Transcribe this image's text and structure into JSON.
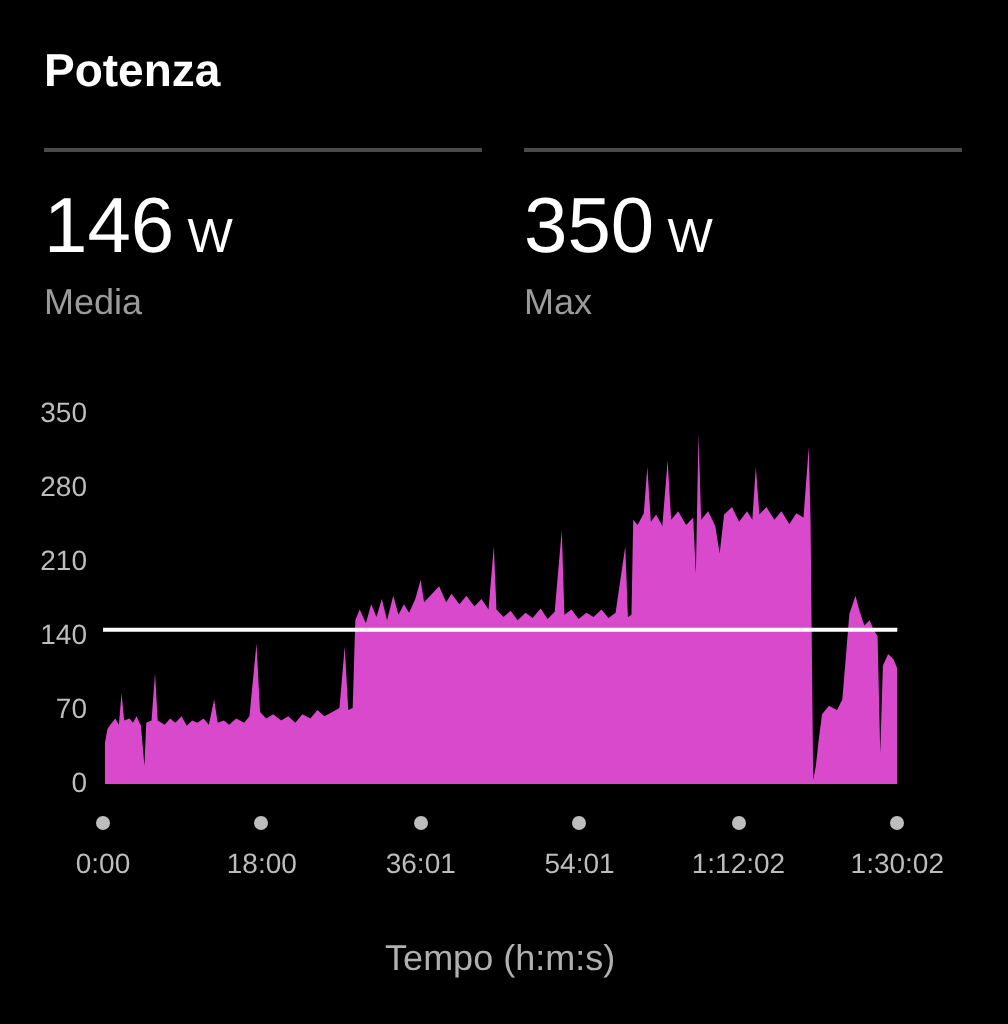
{
  "chart_data": {
    "type": "area",
    "title": "Potenza",
    "xlabel": "Tempo (h:m:s)",
    "annotations": [
      "146 W",
      "Media",
      "350 W",
      "Max"
    ],
    "x": [
      0.2,
      0.5,
      1.0,
      1.4,
      1.8,
      2.1,
      2.4,
      3.0,
      3.4,
      3.8,
      4.3,
      4.7,
      4.9,
      5.5,
      5.9,
      6.2,
      7.0,
      7.6,
      8.2,
      8.9,
      9.5,
      10.1,
      10.7,
      11.4,
      12.0,
      12.6,
      13.0,
      13.7,
      14.3,
      15.1,
      16.0,
      16.6,
      17.4,
      17.8,
      18.5,
      19.3,
      20.2,
      21.0,
      21.8,
      22.6,
      23.5,
      24.3,
      25.1,
      26.0,
      26.8,
      27.4,
      27.8,
      28.3,
      28.6,
      29.1,
      29.8,
      30.4,
      31.0,
      31.6,
      32.2,
      32.9,
      33.5,
      34.1,
      34.7,
      35.4,
      36.0,
      36.4,
      37.3,
      38.1,
      38.9,
      39.5,
      40.4,
      41.2,
      42.1,
      42.9,
      43.7,
      44.3,
      44.6,
      45.4,
      46.2,
      47.0,
      47.9,
      48.7,
      49.6,
      50.4,
      51.2,
      52.0,
      52.3,
      53.1,
      53.9,
      54.8,
      55.6,
      56.5,
      57.3,
      58.1,
      59.2,
      59.5,
      59.9,
      60.1,
      60.6,
      61.3,
      61.7,
      62.1,
      62.7,
      63.4,
      64.0,
      64.4,
      65.2,
      66.1,
      66.9,
      67.2,
      67.5,
      67.8,
      68.6,
      69.4,
      69.9,
      70.4,
      71.3,
      72.1,
      73.0,
      73.6,
      74.0,
      74.4,
      75.2,
      76.1,
      76.9,
      77.8,
      78.6,
      79.4,
      80.0,
      80.2,
      80.5,
      80.8,
      81.1,
      81.5,
      82.3,
      83.2,
      83.8,
      84.2,
      84.6,
      85.3,
      85.7,
      86.3,
      86.9,
      87.4,
      87.8,
      88.1,
      88.4,
      89.0,
      89.6,
      90.0
    ],
    "values": [
      38,
      52,
      58,
      62,
      56,
      86,
      60,
      62,
      58,
      64,
      55,
      17,
      58,
      60,
      105,
      60,
      56,
      62,
      58,
      64,
      55,
      60,
      58,
      62,
      56,
      80,
      58,
      60,
      56,
      62,
      58,
      64,
      133,
      68,
      62,
      66,
      60,
      64,
      58,
      66,
      62,
      70,
      64,
      68,
      72,
      130,
      70,
      72,
      155,
      165,
      152,
      170,
      158,
      175,
      155,
      178,
      160,
      170,
      162,
      175,
      193,
      172,
      180,
      187,
      172,
      180,
      170,
      178,
      168,
      175,
      165,
      225,
      165,
      158,
      164,
      155,
      162,
      157,
      166,
      156,
      163,
      240,
      160,
      165,
      156,
      162,
      158,
      165,
      157,
      162,
      225,
      158,
      160,
      250,
      245,
      256,
      300,
      248,
      255,
      244,
      306,
      250,
      258,
      245,
      252,
      199,
      331,
      250,
      258,
      244,
      218,
      255,
      262,
      248,
      258,
      250,
      300,
      255,
      262,
      250,
      258,
      246,
      256,
      252,
      319,
      250,
      4,
      17,
      40,
      66,
      74,
      70,
      80,
      120,
      161,
      178,
      165,
      150,
      155,
      145,
      140,
      29,
      112,
      123,
      118,
      110
    ],
    "color": "#d84acb",
    "xlim": [
      0,
      90.033
    ],
    "xticks": [
      {
        "value": 0,
        "label": "0:00"
      },
      {
        "value": 18,
        "label": "18:00"
      },
      {
        "value": 36.017,
        "label": "36:01"
      },
      {
        "value": 54.017,
        "label": "54:01"
      },
      {
        "value": 72.033,
        "label": "1:12:02"
      },
      {
        "value": 90.033,
        "label": "1:30:02"
      }
    ],
    "ylim": [
      0,
      350
    ],
    "yticks": [
      0,
      70,
      140,
      210,
      280,
      350
    ],
    "ref_lines": [
      {
        "axis": "y",
        "value": 146,
        "color": "#ffffff"
      }
    ],
    "grid": false,
    "legend": false,
    "marker": "none"
  }
}
